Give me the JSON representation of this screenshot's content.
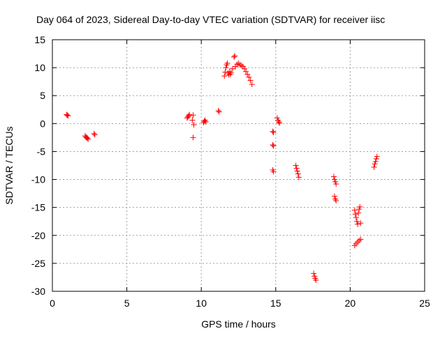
{
  "chart_data": {
    "type": "scatter",
    "title": "Day 064 of 2023, Sidereal Day-to-day VTEC variation (SDTVAR) for receiver iisc",
    "xlabel": "GPS time / hours",
    "ylabel": "SDTVAR / TECUs",
    "xlim": [
      0,
      25
    ],
    "ylim": [
      -30,
      15
    ],
    "xticks": [
      0,
      5,
      10,
      15,
      20,
      25
    ],
    "xtick_labels": [
      "0",
      "5",
      "10",
      "15",
      "20",
      "25"
    ],
    "yticks": [
      -30,
      -25,
      -20,
      -15,
      -10,
      -5,
      0,
      5,
      10,
      15
    ],
    "ytick_labels": [
      "-30",
      "-25",
      "-20",
      "-15",
      "-10",
      "-5",
      "0",
      "5",
      "10",
      "15"
    ],
    "grid": true,
    "marker": "+",
    "series": [
      {
        "name": "SDTVAR",
        "color": "#ff0000",
        "points": [
          [
            0.95,
            1.6
          ],
          [
            1.0,
            1.5
          ],
          [
            1.05,
            1.4
          ],
          [
            2.2,
            -2.2
          ],
          [
            2.25,
            -2.4
          ],
          [
            2.3,
            -2.5
          ],
          [
            2.35,
            -2.6
          ],
          [
            2.4,
            -2.8
          ],
          [
            2.8,
            -1.8
          ],
          [
            2.85,
            -2.0
          ],
          [
            9.05,
            1.0
          ],
          [
            9.1,
            1.2
          ],
          [
            9.15,
            1.4
          ],
          [
            9.2,
            1.6
          ],
          [
            9.4,
            0.6
          ],
          [
            9.45,
            1.5
          ],
          [
            9.5,
            -0.2
          ],
          [
            9.45,
            -2.5
          ],
          [
            10.15,
            0.2
          ],
          [
            10.2,
            0.4
          ],
          [
            10.25,
            0.6
          ],
          [
            10.3,
            0.3
          ],
          [
            11.15,
            2.3
          ],
          [
            11.2,
            2.1
          ],
          [
            11.55,
            8.5
          ],
          [
            11.6,
            9.2
          ],
          [
            11.65,
            10.0
          ],
          [
            11.7,
            10.5
          ],
          [
            11.75,
            10.8
          ],
          [
            11.8,
            9.0
          ],
          [
            11.85,
            8.7
          ],
          [
            11.9,
            9.3
          ],
          [
            11.95,
            8.8
          ],
          [
            12.0,
            9.1
          ],
          [
            12.1,
            9.8
          ],
          [
            12.2,
            11.9
          ],
          [
            12.25,
            12.1
          ],
          [
            12.3,
            10.2
          ],
          [
            12.4,
            10.6
          ],
          [
            12.5,
            10.8
          ],
          [
            12.6,
            10.5
          ],
          [
            12.7,
            10.4
          ],
          [
            12.8,
            10.2
          ],
          [
            12.9,
            9.8
          ],
          [
            13.0,
            9.3
          ],
          [
            13.1,
            8.8
          ],
          [
            13.2,
            8.3
          ],
          [
            13.3,
            7.7
          ],
          [
            13.4,
            7.0
          ],
          [
            14.8,
            -1.4
          ],
          [
            14.85,
            -1.6
          ],
          [
            14.8,
            -3.8
          ],
          [
            14.85,
            -4.0
          ],
          [
            14.8,
            -8.3
          ],
          [
            14.85,
            -8.6
          ],
          [
            15.1,
            1.0
          ],
          [
            15.15,
            0.6
          ],
          [
            15.2,
            0.3
          ],
          [
            15.25,
            0.1
          ],
          [
            16.35,
            -7.5
          ],
          [
            16.4,
            -8.0
          ],
          [
            16.45,
            -8.5
          ],
          [
            16.5,
            -9.0
          ],
          [
            16.55,
            -9.6
          ],
          [
            17.55,
            -26.8
          ],
          [
            17.6,
            -27.3
          ],
          [
            17.65,
            -27.7
          ],
          [
            17.7,
            -28.0
          ],
          [
            18.9,
            -9.5
          ],
          [
            18.95,
            -10.0
          ],
          [
            19.0,
            -10.4
          ],
          [
            19.05,
            -10.8
          ],
          [
            18.95,
            -13.0
          ],
          [
            19.0,
            -13.5
          ],
          [
            19.05,
            -13.8
          ],
          [
            20.3,
            -21.8
          ],
          [
            20.4,
            -21.5
          ],
          [
            20.5,
            -21.2
          ],
          [
            20.6,
            -20.9
          ],
          [
            20.7,
            -20.7
          ],
          [
            20.3,
            -15.5
          ],
          [
            20.35,
            -16.2
          ],
          [
            20.4,
            -16.8
          ],
          [
            20.45,
            -17.5
          ],
          [
            20.5,
            -18.0
          ],
          [
            20.55,
            -16.0
          ],
          [
            20.6,
            -15.3
          ],
          [
            20.65,
            -14.9
          ],
          [
            20.7,
            -17.8
          ],
          [
            21.6,
            -7.8
          ],
          [
            21.65,
            -7.2
          ],
          [
            21.7,
            -6.8
          ],
          [
            21.75,
            -6.3
          ],
          [
            21.8,
            -5.9
          ]
        ]
      }
    ]
  }
}
